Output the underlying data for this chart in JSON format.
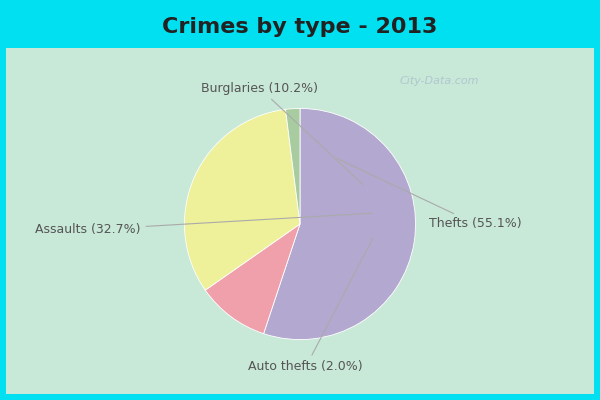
{
  "title": "Crimes by type - 2013",
  "slices": [
    {
      "label": "Thefts (55.1%)",
      "value": 55.1,
      "color": "#b3a8d0"
    },
    {
      "label": "Burglaries (10.2%)",
      "value": 10.2,
      "color": "#f0a0aa"
    },
    {
      "label": "Assaults (32.7%)",
      "value": 32.7,
      "color": "#eef09a"
    },
    {
      "label": "Auto thefts (2.0%)",
      "value": 2.0,
      "color": "#a8cca0"
    }
  ],
  "bg_cyan": "#00e0f0",
  "bg_mint": "#c8e8d8",
  "title_fontsize": 16,
  "label_fontsize": 9,
  "title_color": "#222222",
  "label_color": "#555555",
  "arrow_color": "#aaaaaa",
  "watermark": "City-Data.com",
  "startangle": 90
}
